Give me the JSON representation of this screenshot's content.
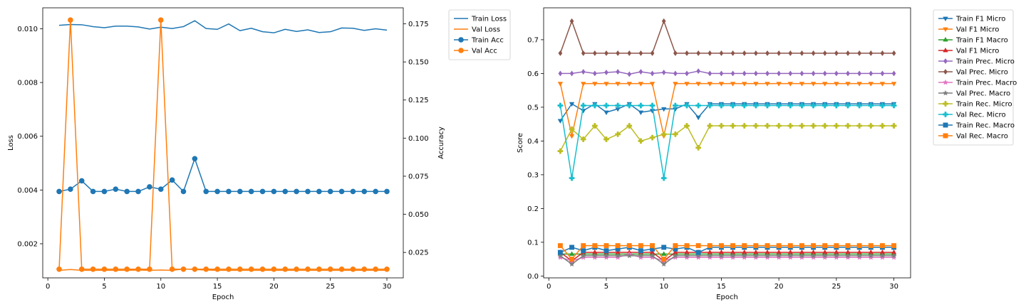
{
  "chart_data": [
    {
      "type": "line",
      "xlabel": "Epoch",
      "ylabel": "Loss",
      "y2label": "Accuracy",
      "xlim": [
        -0.45,
        31.45
      ],
      "ylim": [
        0.00073,
        0.01078
      ],
      "y2lim": [
        0.0083,
        0.1855
      ],
      "xticks": [
        "0",
        "5",
        "10",
        "15",
        "20",
        "25",
        "30"
      ],
      "yticks": [
        "0.002",
        "0.004",
        "0.006",
        "0.008",
        "0.010"
      ],
      "y2ticks": [
        "0.025",
        "0.050",
        "0.075",
        "0.100",
        "0.125",
        "0.150",
        "0.175"
      ],
      "grid": false,
      "legend": "outside-right-top",
      "x": [
        1,
        2,
        3,
        4,
        5,
        6,
        7,
        8,
        9,
        10,
        11,
        12,
        13,
        14,
        15,
        16,
        17,
        18,
        19,
        20,
        21,
        22,
        23,
        24,
        25,
        26,
        27,
        28,
        29,
        30
      ],
      "series": [
        {
          "name": "Train Loss",
          "axis": "left",
          "color": "#1f77b4",
          "marker": "none",
          "values": [
            0.01013,
            0.01016,
            0.01015,
            0.01008,
            0.01004,
            0.0101,
            0.0101,
            0.01007,
            0.00999,
            0.01006,
            0.01001,
            0.01008,
            0.0103,
            0.01001,
            0.00998,
            0.01018,
            0.00993,
            0.01002,
            0.00989,
            0.00985,
            0.00998,
            0.0099,
            0.00996,
            0.00986,
            0.00989,
            0.01003,
            0.01002,
            0.00994,
            0.01,
            0.00995
          ]
        },
        {
          "name": "Val Loss",
          "axis": "left",
          "color": "#ff7f0e",
          "marker": "none",
          "values": [
            0.00101,
            0.00104,
            0.00101,
            0.00101,
            0.00101,
            0.00101,
            0.00101,
            0.00102,
            0.00101,
            0.00102,
            0.00101,
            0.00106,
            0.00104,
            0.00102,
            0.00101,
            0.00101,
            0.00101,
            0.00101,
            0.00101,
            0.00101,
            0.00101,
            0.00101,
            0.00101,
            0.00101,
            0.00101,
            0.00101,
            0.00101,
            0.00101,
            0.00101,
            0.00101
          ]
        },
        {
          "name": "Train Acc",
          "axis": "right",
          "color": "#1f77b4",
          "marker": "circle",
          "values": [
            0.065,
            0.0665,
            0.072,
            0.065,
            0.065,
            0.0665,
            0.065,
            0.065,
            0.068,
            0.0665,
            0.0725,
            0.065,
            0.0865,
            0.065,
            0.065,
            0.065,
            0.065,
            0.065,
            0.065,
            0.065,
            0.065,
            0.065,
            0.065,
            0.065,
            0.065,
            0.065,
            0.065,
            0.065,
            0.065,
            0.065
          ]
        },
        {
          "name": "Val Acc",
          "axis": "right",
          "color": "#ff7f0e",
          "marker": "circle",
          "values": [
            0.014,
            0.1775,
            0.014,
            0.014,
            0.014,
            0.014,
            0.014,
            0.014,
            0.014,
            0.1775,
            0.014,
            0.014,
            0.014,
            0.014,
            0.014,
            0.014,
            0.014,
            0.014,
            0.014,
            0.014,
            0.014,
            0.014,
            0.014,
            0.014,
            0.014,
            0.014,
            0.014,
            0.014,
            0.014,
            0.014
          ]
        }
      ]
    },
    {
      "type": "line",
      "xlabel": "Epoch",
      "ylabel": "Score",
      "xlim": [
        -0.45,
        31.45
      ],
      "ylim": [
        -0.0055,
        0.7945
      ],
      "xticks": [
        "0",
        "5",
        "10",
        "15",
        "20",
        "25",
        "30"
      ],
      "yticks": [
        "0.0",
        "0.1",
        "0.2",
        "0.3",
        "0.4",
        "0.5",
        "0.6",
        "0.7"
      ],
      "grid": false,
      "legend": "outside-right-top",
      "x": [
        1,
        2,
        3,
        4,
        5,
        6,
        7,
        8,
        9,
        10,
        11,
        12,
        13,
        14,
        15,
        16,
        17,
        18,
        19,
        20,
        21,
        22,
        23,
        24,
        25,
        26,
        27,
        28,
        29,
        30
      ],
      "series": [
        {
          "name": "Train F1 Micro",
          "color": "#1f77b4",
          "marker": "tri-down",
          "values": [
            0.46,
            0.51,
            0.49,
            0.51,
            0.485,
            0.495,
            0.51,
            0.485,
            0.49,
            0.495,
            0.495,
            0.51,
            0.47,
            0.51,
            0.51,
            0.51,
            0.51,
            0.51,
            0.51,
            0.51,
            0.51,
            0.51,
            0.51,
            0.51,
            0.51,
            0.51,
            0.51,
            0.51,
            0.51,
            0.51
          ]
        },
        {
          "name": "Val F1 Micro",
          "color": "#ff7f0e",
          "marker": "tri-down",
          "values": [
            0.57,
            0.415,
            0.57,
            0.57,
            0.57,
            0.57,
            0.57,
            0.57,
            0.57,
            0.415,
            0.57,
            0.57,
            0.57,
            0.57,
            0.57,
            0.57,
            0.57,
            0.57,
            0.57,
            0.57,
            0.57,
            0.57,
            0.57,
            0.57,
            0.57,
            0.57,
            0.57,
            0.57,
            0.57,
            0.57
          ]
        },
        {
          "name": "Train F1 Macro",
          "color": "#2ca02c",
          "marker": "tri-up",
          "values": [
            0.065,
            0.065,
            0.065,
            0.065,
            0.065,
            0.065,
            0.065,
            0.065,
            0.065,
            0.065,
            0.065,
            0.065,
            0.065,
            0.065,
            0.065,
            0.065,
            0.065,
            0.065,
            0.065,
            0.065,
            0.065,
            0.065,
            0.065,
            0.065,
            0.065,
            0.065,
            0.065,
            0.065,
            0.065,
            0.065
          ]
        },
        {
          "name": "Val F1 Micro",
          "color": "#d62728",
          "marker": "tri-up",
          "values": [
            0.07,
            0.045,
            0.07,
            0.07,
            0.07,
            0.07,
            0.07,
            0.07,
            0.07,
            0.045,
            0.07,
            0.07,
            0.07,
            0.07,
            0.07,
            0.07,
            0.07,
            0.07,
            0.07,
            0.07,
            0.07,
            0.07,
            0.07,
            0.07,
            0.07,
            0.07,
            0.07,
            0.07,
            0.07,
            0.07
          ]
        },
        {
          "name": "Train Prec. Micro",
          "color": "#9467bd",
          "marker": "diamond",
          "values": [
            0.6,
            0.6,
            0.605,
            0.6,
            0.603,
            0.605,
            0.598,
            0.605,
            0.6,
            0.603,
            0.6,
            0.6,
            0.607,
            0.6,
            0.6,
            0.6,
            0.6,
            0.6,
            0.6,
            0.6,
            0.6,
            0.6,
            0.6,
            0.6,
            0.6,
            0.6,
            0.6,
            0.6,
            0.6,
            0.6
          ]
        },
        {
          "name": "Val Prec. Micro",
          "color": "#8c564b",
          "marker": "diamond",
          "values": [
            0.66,
            0.755,
            0.66,
            0.66,
            0.66,
            0.66,
            0.66,
            0.66,
            0.66,
            0.755,
            0.66,
            0.66,
            0.66,
            0.66,
            0.66,
            0.66,
            0.66,
            0.66,
            0.66,
            0.66,
            0.66,
            0.66,
            0.66,
            0.66,
            0.66,
            0.66,
            0.66,
            0.66,
            0.66,
            0.66
          ]
        },
        {
          "name": "Train Prec. Macro",
          "color": "#e377c2",
          "marker": "star",
          "values": [
            0.055,
            0.045,
            0.055,
            0.055,
            0.055,
            0.055,
            0.065,
            0.055,
            0.055,
            0.045,
            0.055,
            0.055,
            0.055,
            0.055,
            0.055,
            0.055,
            0.055,
            0.055,
            0.055,
            0.055,
            0.055,
            0.055,
            0.055,
            0.055,
            0.055,
            0.055,
            0.055,
            0.055,
            0.055,
            0.055
          ]
        },
        {
          "name": "Val Prec. Macro",
          "color": "#7f7f7f",
          "marker": "star",
          "values": [
            0.06,
            0.035,
            0.06,
            0.06,
            0.06,
            0.06,
            0.06,
            0.06,
            0.06,
            0.035,
            0.06,
            0.06,
            0.06,
            0.06,
            0.06,
            0.06,
            0.06,
            0.06,
            0.06,
            0.06,
            0.06,
            0.06,
            0.06,
            0.06,
            0.06,
            0.06,
            0.06,
            0.06,
            0.06,
            0.06
          ]
        },
        {
          "name": "Train Rec. Micro",
          "color": "#bcbd22",
          "marker": "plus",
          "values": [
            0.37,
            0.435,
            0.405,
            0.445,
            0.405,
            0.42,
            0.445,
            0.4,
            0.41,
            0.42,
            0.42,
            0.445,
            0.38,
            0.445,
            0.445,
            0.445,
            0.445,
            0.445,
            0.445,
            0.445,
            0.445,
            0.445,
            0.445,
            0.445,
            0.445,
            0.445,
            0.445,
            0.445,
            0.445,
            0.445
          ]
        },
        {
          "name": "Val Rec. Micro",
          "color": "#17becf",
          "marker": "plus",
          "values": [
            0.505,
            0.29,
            0.505,
            0.505,
            0.505,
            0.505,
            0.505,
            0.505,
            0.505,
            0.29,
            0.505,
            0.505,
            0.505,
            0.505,
            0.505,
            0.505,
            0.505,
            0.505,
            0.505,
            0.505,
            0.505,
            0.505,
            0.505,
            0.505,
            0.505,
            0.505,
            0.505,
            0.505,
            0.505,
            0.505
          ]
        },
        {
          "name": "Train Rec. Macro",
          "color": "#1f77b4",
          "marker": "square",
          "values": [
            0.07,
            0.085,
            0.075,
            0.085,
            0.075,
            0.08,
            0.085,
            0.075,
            0.08,
            0.085,
            0.08,
            0.085,
            0.07,
            0.085,
            0.085,
            0.085,
            0.085,
            0.085,
            0.085,
            0.085,
            0.085,
            0.085,
            0.085,
            0.085,
            0.085,
            0.085,
            0.085,
            0.085,
            0.085,
            0.085
          ]
        },
        {
          "name": "Val Rec. Macro",
          "color": "#ff7f0e",
          "marker": "square",
          "values": [
            0.09,
            0.05,
            0.09,
            0.09,
            0.09,
            0.09,
            0.09,
            0.09,
            0.09,
            0.05,
            0.09,
            0.09,
            0.09,
            0.09,
            0.09,
            0.09,
            0.09,
            0.09,
            0.09,
            0.09,
            0.09,
            0.09,
            0.09,
            0.09,
            0.09,
            0.09,
            0.09,
            0.09,
            0.09,
            0.09
          ]
        }
      ]
    }
  ]
}
